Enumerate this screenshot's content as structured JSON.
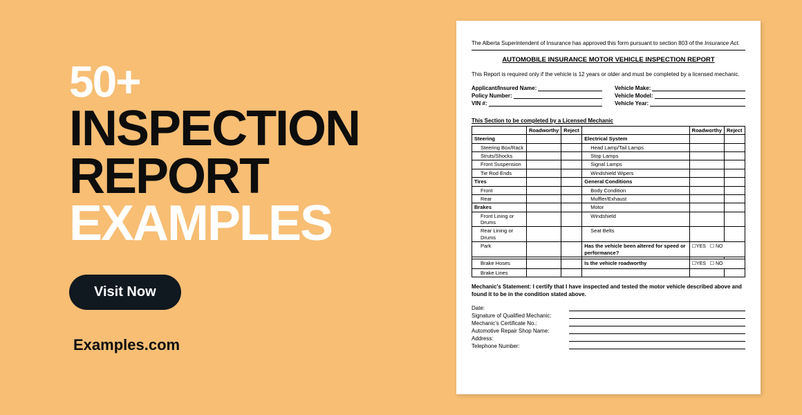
{
  "colors": {
    "bg": "#f7be74",
    "dark": "#0d0d0d",
    "white": "#ffffff",
    "btn_bg": "#101820"
  },
  "headline": {
    "count": "50+",
    "line1": "INSPECTION",
    "line2": "REPORT",
    "line3": "EXAMPLES"
  },
  "cta_label": "Visit Now",
  "brand": "Examples.com",
  "document": {
    "approval_text_a": "The Alberta Superintendent of Insurance has approved this form pursuant to section 803 of the ",
    "approval_text_b": "Insurance Act.",
    "title": "AUTOMOBILE INSURANCE MOTOR VEHICLE INSPECTION REPORT",
    "requirement": "This Report is required only if the vehicle is 12 years or older and must be completed by a licensed mechanic.",
    "left_fields": [
      "Applicant/Insured Name:",
      "Policy Number:",
      "VIN #:"
    ],
    "right_fields": [
      "Vehicle Make:",
      "Vehicle Model:",
      "Vehicle Year:"
    ],
    "section_header": "This Section to be completed by a Licensed Mechanic",
    "col_headers": {
      "roadworthy": "Roadworthy",
      "reject": "Reject"
    },
    "left_rows": [
      {
        "t": "Steering",
        "cat": true
      },
      {
        "t": "Steering Box/Rack",
        "indent": true
      },
      {
        "t": "Struts/Shocks",
        "indent": true
      },
      {
        "t": "Front Suspension",
        "indent": true
      },
      {
        "t": "Tie Rod Ends",
        "indent": true
      },
      {
        "t": "Tires",
        "cat": true
      },
      {
        "t": "Front",
        "indent": true
      },
      {
        "t": "Rear",
        "indent": true
      },
      {
        "t": "Brakes",
        "cat": true
      },
      {
        "t": "Front Lining or Drums",
        "indent": true
      },
      {
        "t": "Rear Lining or Drums",
        "indent": true
      },
      {
        "t": "Park",
        "indent": true
      },
      {
        "t": "",
        "indent": true
      },
      {
        "t": "Brake Hoses",
        "indent": true
      },
      {
        "t": "Brake Lines",
        "indent": true
      }
    ],
    "right_rows": [
      {
        "t": "Electrical System",
        "cat": true
      },
      {
        "t": "Head Lamp/Tail Lamps",
        "indent": true
      },
      {
        "t": "Stop Lamps",
        "indent": true
      },
      {
        "t": "Signal Lamps",
        "indent": true
      },
      {
        "t": "Windshield Wipers",
        "indent": true
      },
      {
        "t": "General Conditions",
        "cat": true
      },
      {
        "t": "Body Condition",
        "indent": true
      },
      {
        "t": "Muffler/Exhaust",
        "indent": true
      },
      {
        "t": "Motor",
        "indent": true
      },
      {
        "t": "Windshield",
        "indent": true
      },
      {
        "t": "Seat Belts",
        "indent": true
      },
      {
        "t": "Has the vehicle been altered for speed or performance?",
        "cat": true,
        "yn": true
      },
      {
        "t": "",
        "indent": true
      },
      {
        "t": "Is the vehicle roadworthy",
        "cat": true,
        "yn": true
      }
    ],
    "yes": "YES",
    "no": "NO",
    "statement": "Mechanic's Statement:  I certify that I have inspected and tested the motor vehicle described above and found it to be in the condition stated above.",
    "sig_fields": [
      "Date:",
      "Signature of Qualified Mechanic:",
      "Mechanic's Certificate No.:",
      "Automotive Repair Shop Name:",
      "Address:",
      "Telephone Number:"
    ]
  }
}
